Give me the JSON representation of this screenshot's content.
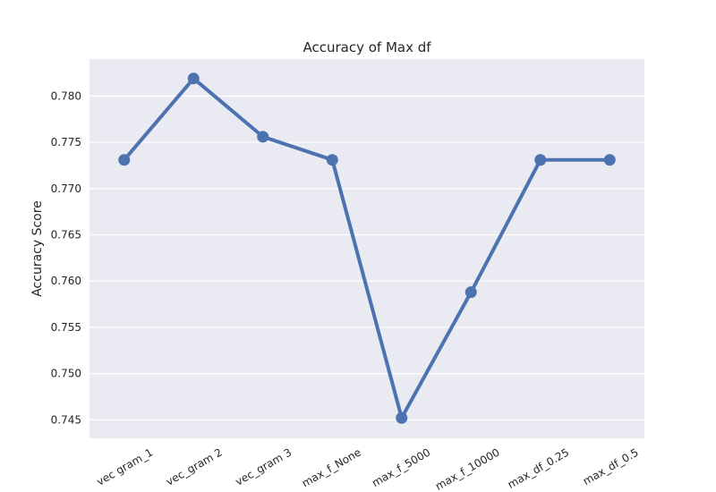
{
  "chart_data": {
    "type": "line",
    "title": "Accuracy of Max df",
    "xlabel": "",
    "ylabel": "Accuracy Score",
    "categories": [
      "vec gram_1",
      "vec_gram 2",
      "vec_gram 3",
      "max_f_None",
      "max_f_5000",
      "max_f_10000",
      "max_df_0.25",
      "max_df_0.5"
    ],
    "series": [
      {
        "values": [
          0.7731,
          0.7819,
          0.7756,
          0.7731,
          0.7452,
          0.7588,
          0.7731,
          0.7731
        ]
      }
    ],
    "ylim": [
      0.743,
      0.784
    ],
    "yticks": [
      "0.745",
      "0.750",
      "0.755",
      "0.760",
      "0.765",
      "0.770",
      "0.775",
      "0.780"
    ],
    "grid": true,
    "colors": {
      "plot_bg": "#EAEAF2",
      "grid": "#FFFFFF",
      "line": "#4C72B0",
      "text": "#262626"
    }
  }
}
